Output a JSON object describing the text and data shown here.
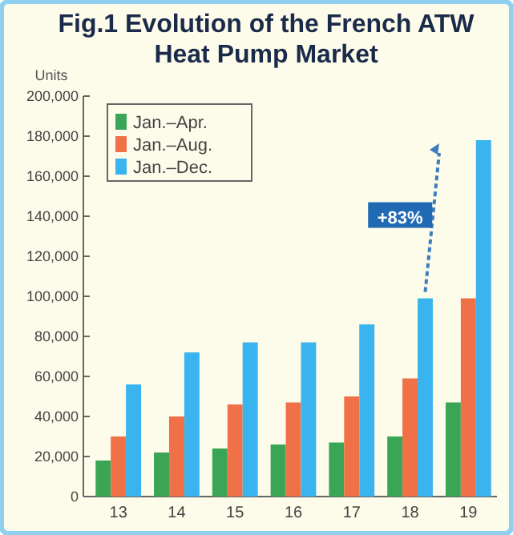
{
  "chart_data": {
    "type": "bar",
    "title": "Fig.1 Evolution of the French ATW Heat Pump Market",
    "ylabel": "Units",
    "categories": [
      "13",
      "14",
      "15",
      "16",
      "17",
      "18",
      "19"
    ],
    "series": [
      {
        "name": "Jan.–Apr.",
        "color": "#3aa655",
        "values": [
          18000,
          22000,
          24000,
          26000,
          27000,
          30000,
          47000
        ]
      },
      {
        "name": "Jan.–Aug.",
        "color": "#f07048",
        "values": [
          30000,
          40000,
          46000,
          47000,
          50000,
          59000,
          99000
        ]
      },
      {
        "name": "Jan.–Dec.",
        "color": "#3ab4ee",
        "values": [
          56000,
          72000,
          77000,
          77000,
          86000,
          99000,
          178000
        ]
      }
    ],
    "ylim": [
      0,
      200000
    ],
    "yticks": [
      {
        "value": 0,
        "label": "0"
      },
      {
        "value": 20000,
        "label": "20,000"
      },
      {
        "value": 40000,
        "label": "40,000"
      },
      {
        "value": 60000,
        "label": "60,000"
      },
      {
        "value": 80000,
        "label": "80,000"
      },
      {
        "value": 100000,
        "label": "100,000"
      },
      {
        "value": 120000,
        "label": "120,000"
      },
      {
        "value": 140000,
        "label": "140,000"
      },
      {
        "value": 160000,
        "label": "160,000"
      },
      {
        "value": 180000,
        "label": "180,000"
      },
      {
        "value": 200000,
        "label": "200,000"
      }
    ],
    "annotations": [
      "+83%"
    ],
    "legend": "top left",
    "grid": false
  }
}
